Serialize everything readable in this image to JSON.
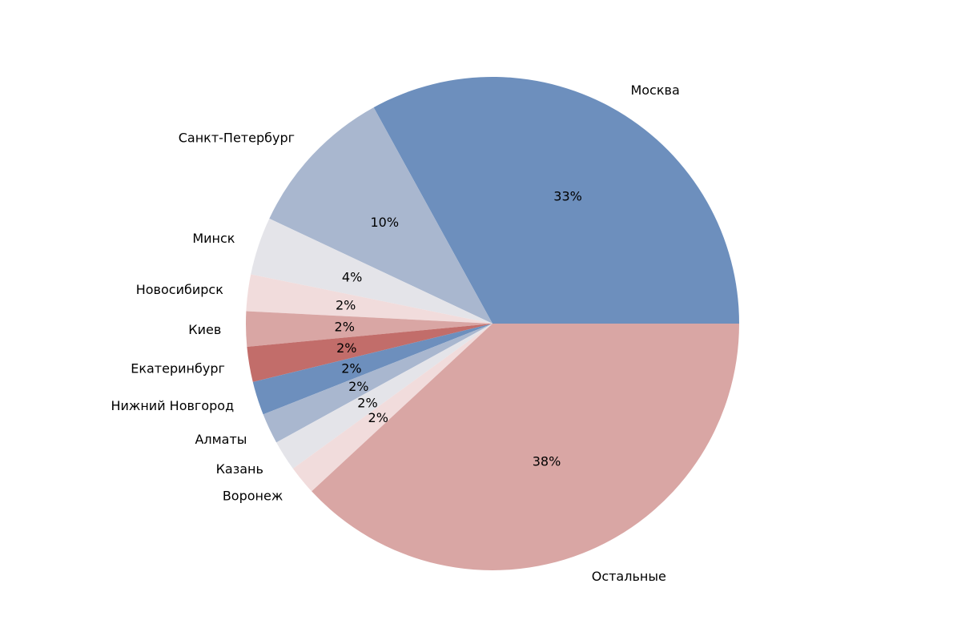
{
  "chart_data": {
    "type": "pie",
    "title": "",
    "start_angle_deg": 0,
    "direction": "counterclockwise",
    "slices": [
      {
        "label": "Москва",
        "value": 33,
        "pct_label": "33%",
        "color": "#6d8fbd"
      },
      {
        "label": "Санкт-Петербург",
        "value": 10,
        "pct_label": "10%",
        "color": "#a9b7cf"
      },
      {
        "label": "Минск",
        "value": 3.8,
        "pct_label": "4%",
        "color": "#e4e4e9"
      },
      {
        "label": "Новосибирск",
        "value": 2.4,
        "pct_label": "2%",
        "color": "#f1dcdc"
      },
      {
        "label": "Киев",
        "value": 2.3,
        "pct_label": "2%",
        "color": "#d9a6a4"
      },
      {
        "label": "Екатеринбург",
        "value": 2.3,
        "pct_label": "2%",
        "color": "#c26d6a"
      },
      {
        "label": "Нижний Новгород",
        "value": 2.2,
        "pct_label": "2%",
        "color": "#6d8fbd"
      },
      {
        "label": "Алматы",
        "value": 2.0,
        "pct_label": "2%",
        "color": "#a9b7cf"
      },
      {
        "label": "Казань",
        "value": 2.0,
        "pct_label": "2%",
        "color": "#e4e4e9"
      },
      {
        "label": "Воронеж",
        "value": 1.9,
        "pct_label": "2%",
        "color": "#f1dcdc"
      },
      {
        "label": "Остальные",
        "value": 38.1,
        "pct_label": "38%",
        "color": "#d9a6a4"
      }
    ]
  }
}
